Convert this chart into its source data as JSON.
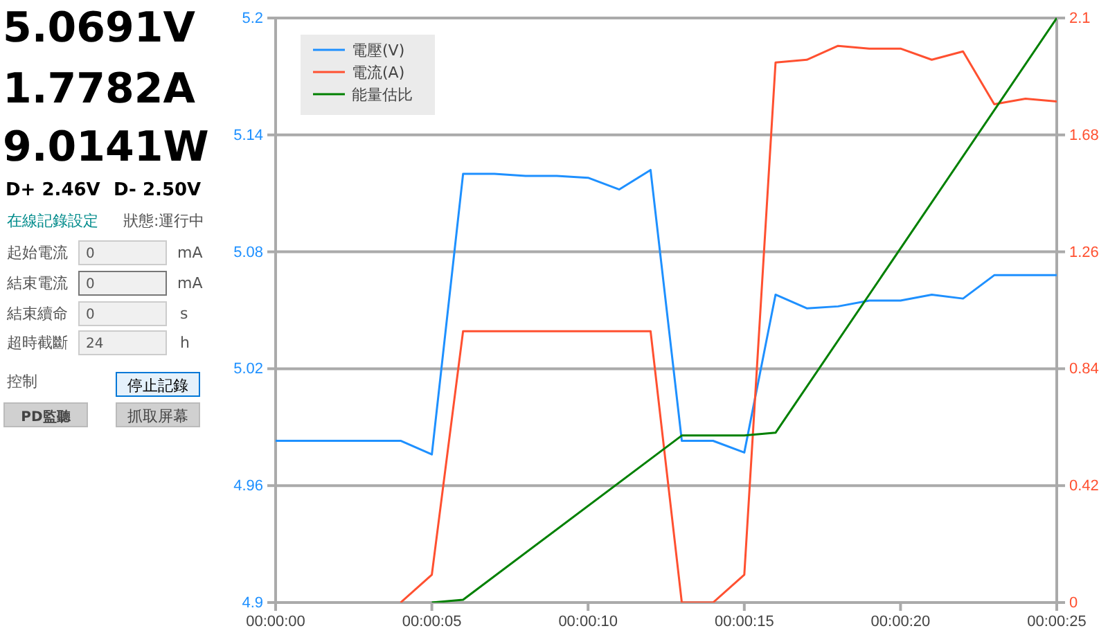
{
  "chart_data": [
    {
      "type": "other",
      "annotations": [
        "5.0691V",
        "1.7782A",
        "9.0141W",
        "D+ 2.46V",
        "D- 2.50V",
        "在線記錄設定",
        "狀態:運行中",
        "起始電流",
        "0",
        "mA",
        "結束電流",
        "0",
        "mA",
        "結束續命",
        "0",
        "s",
        "超時截斷",
        "24",
        "h",
        "控制",
        "停止記錄",
        "PD監聽",
        "抓取屏幕"
      ]
    },
    {
      "type": "line",
      "x": [
        0,
        1,
        2,
        3,
        4,
        5,
        6,
        7,
        8,
        9,
        10,
        11,
        12,
        13,
        14,
        15,
        16,
        17,
        18,
        19,
        20,
        21,
        22,
        23,
        24,
        25
      ],
      "xlim": [
        0,
        25
      ],
      "xticks": [
        {
          "value": 0,
          "label": "00:00:00"
        },
        {
          "value": 5,
          "label": "00:00:05"
        },
        {
          "value": 10,
          "label": "00:00:10"
        },
        {
          "value": 15,
          "label": "00:00:15"
        },
        {
          "value": 20,
          "label": "00:00:20"
        },
        {
          "value": 25,
          "label": "00:00:25"
        }
      ],
      "ylim": [
        4.9,
        5.2
      ],
      "yticks": [
        4.9,
        4.96,
        5.02,
        5.08,
        5.14,
        5.2
      ],
      "y2lim": [
        0,
        2.1
      ],
      "y2ticks": [
        0,
        0.42,
        0.84,
        1.26,
        1.68,
        2.1
      ],
      "grid": "y",
      "legend": "top left",
      "series": [
        {
          "name": "電壓(V)",
          "color": "#1e90ff",
          "values": [
            4.983,
            4.983,
            4.983,
            4.983,
            4.983,
            4.976,
            5.12,
            5.12,
            5.119,
            5.119,
            5.118,
            5.112,
            5.122,
            4.983,
            4.983,
            4.977,
            5.058,
            5.051,
            5.052,
            5.055,
            5.055,
            5.058,
            5.056,
            5.068,
            5.068,
            5.068
          ]
        },
        {
          "name": "電流(A)",
          "color": "#ff5030",
          "axis": "y2",
          "values": [
            null,
            null,
            null,
            null,
            0,
            0.1,
            0.975,
            0.975,
            0.975,
            0.975,
            0.975,
            0.975,
            0.975,
            0,
            0,
            0.1,
            1.94,
            1.95,
            2.0,
            1.99,
            1.99,
            1.95,
            1.98,
            1.79,
            1.81,
            1.8
          ]
        },
        {
          "name": "能量估比",
          "color": "#008000",
          "axis": "y2",
          "x": [
            5,
            6,
            13,
            15,
            16,
            25
          ],
          "values": [
            0,
            0.01,
            0.6,
            0.6,
            0.61,
            2.1
          ]
        }
      ]
    }
  ]
}
